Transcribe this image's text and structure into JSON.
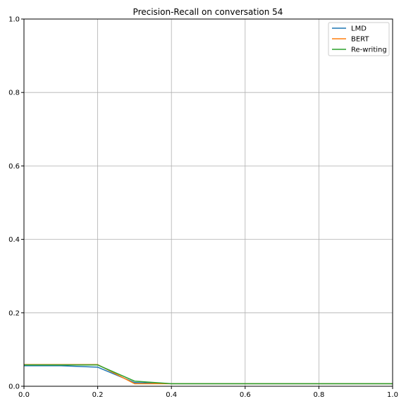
{
  "chart_data": {
    "type": "line",
    "title": "Precision-Recall on conversation 54",
    "xlabel": "",
    "ylabel": "",
    "xlim": [
      0.0,
      1.0
    ],
    "ylim": [
      0.0,
      1.0
    ],
    "xticks": [
      "0.0",
      "0.2",
      "0.4",
      "0.6",
      "0.8",
      "1.0"
    ],
    "yticks": [
      "0.0",
      "0.2",
      "0.4",
      "0.6",
      "0.8",
      "1.0"
    ],
    "grid": true,
    "legend_position": "top-right",
    "x": [
      0.0,
      0.1,
      0.2,
      0.3,
      0.4,
      0.5,
      0.6,
      0.7,
      0.8,
      0.9,
      1.0
    ],
    "series": [
      {
        "name": "LMD",
        "color": "#1f77b4",
        "values": [
          0.056,
          0.056,
          0.052,
          0.01,
          0.007,
          0.007,
          0.007,
          0.007,
          0.007,
          0.007,
          0.007
        ]
      },
      {
        "name": "BERT",
        "color": "#ff7f0e",
        "values": [
          0.059,
          0.059,
          0.059,
          0.007,
          0.007,
          0.007,
          0.007,
          0.007,
          0.007,
          0.007,
          0.007
        ]
      },
      {
        "name": "Re-writing",
        "color": "#2ca02c",
        "values": [
          0.058,
          0.058,
          0.058,
          0.014,
          0.007,
          0.007,
          0.007,
          0.007,
          0.007,
          0.007,
          0.007
        ]
      }
    ]
  }
}
